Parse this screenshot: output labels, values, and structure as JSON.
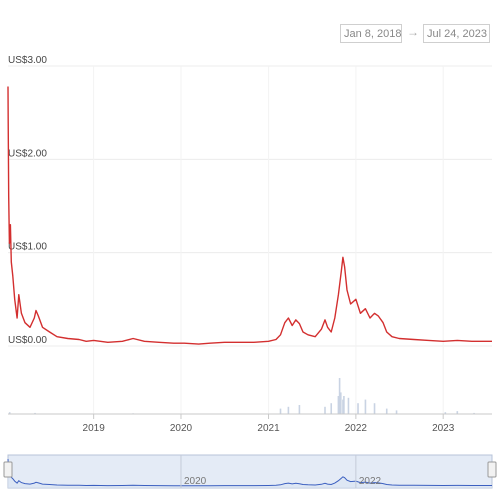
{
  "date_range": {
    "from": "Jan 8, 2018",
    "separator": "→",
    "to": "Jul 24, 2023"
  },
  "chart_data": {
    "type": "line",
    "title": "",
    "xlabel": "",
    "ylabel": "",
    "y_ticks": [
      {
        "value": 0,
        "label": "US$0.00"
      },
      {
        "value": 1,
        "label": "US$1.00"
      },
      {
        "value": 2,
        "label": "US$2.00"
      },
      {
        "value": 3,
        "label": "US$3.00"
      }
    ],
    "ylim": [
      0,
      3.0
    ],
    "x_ticks": [
      "2019",
      "2020",
      "2021",
      "2022",
      "2023"
    ],
    "xlim": [
      "2018-01-08",
      "2023-07-24"
    ],
    "grid": true,
    "line_color": "#d32f2f",
    "volume_color": "#c9d3e3",
    "series": [
      {
        "points": [
          [
            "2018-01-08",
            2.78
          ],
          [
            "2018-01-09",
            2.4
          ],
          [
            "2018-01-11",
            1.6
          ],
          [
            "2018-01-14",
            1.1
          ],
          [
            "2018-01-18",
            1.3
          ],
          [
            "2018-01-22",
            0.9
          ],
          [
            "2018-01-28",
            0.75
          ],
          [
            "2018-02-05",
            0.5
          ],
          [
            "2018-02-15",
            0.3
          ],
          [
            "2018-02-22",
            0.55
          ],
          [
            "2018-03-05",
            0.35
          ],
          [
            "2018-03-20",
            0.25
          ],
          [
            "2018-04-10",
            0.2
          ],
          [
            "2018-04-28",
            0.3
          ],
          [
            "2018-05-05",
            0.38
          ],
          [
            "2018-05-15",
            0.32
          ],
          [
            "2018-06-01",
            0.2
          ],
          [
            "2018-07-01",
            0.15
          ],
          [
            "2018-08-01",
            0.1
          ],
          [
            "2018-09-15",
            0.08
          ],
          [
            "2018-11-01",
            0.07
          ],
          [
            "2018-12-01",
            0.05
          ],
          [
            "2019-01-01",
            0.06
          ],
          [
            "2019-03-01",
            0.04
          ],
          [
            "2019-05-01",
            0.05
          ],
          [
            "2019-06-15",
            0.08
          ],
          [
            "2019-08-01",
            0.05
          ],
          [
            "2019-10-01",
            0.04
          ],
          [
            "2019-12-01",
            0.03
          ],
          [
            "2020-01-15",
            0.03
          ],
          [
            "2020-03-15",
            0.02
          ],
          [
            "2020-05-01",
            0.03
          ],
          [
            "2020-07-01",
            0.04
          ],
          [
            "2020-09-01",
            0.04
          ],
          [
            "2020-11-01",
            0.04
          ],
          [
            "2021-01-01",
            0.05
          ],
          [
            "2021-02-01",
            0.07
          ],
          [
            "2021-02-20",
            0.12
          ],
          [
            "2021-03-10",
            0.25
          ],
          [
            "2021-03-25",
            0.3
          ],
          [
            "2021-04-10",
            0.22
          ],
          [
            "2021-04-25",
            0.28
          ],
          [
            "2021-05-10",
            0.24
          ],
          [
            "2021-05-25",
            0.15
          ],
          [
            "2021-06-15",
            0.12
          ],
          [
            "2021-07-15",
            0.1
          ],
          [
            "2021-08-10",
            0.18
          ],
          [
            "2021-08-25",
            0.28
          ],
          [
            "2021-09-05",
            0.2
          ],
          [
            "2021-09-20",
            0.15
          ],
          [
            "2021-10-05",
            0.3
          ],
          [
            "2021-10-20",
            0.55
          ],
          [
            "2021-11-01",
            0.8
          ],
          [
            "2021-11-08",
            0.95
          ],
          [
            "2021-11-15",
            0.85
          ],
          [
            "2021-11-25",
            0.6
          ],
          [
            "2021-12-10",
            0.45
          ],
          [
            "2022-01-01",
            0.5
          ],
          [
            "2022-01-20",
            0.35
          ],
          [
            "2022-02-10",
            0.4
          ],
          [
            "2022-03-01",
            0.3
          ],
          [
            "2022-03-20",
            0.35
          ],
          [
            "2022-04-05",
            0.32
          ],
          [
            "2022-04-25",
            0.25
          ],
          [
            "2022-05-10",
            0.15
          ],
          [
            "2022-06-01",
            0.1
          ],
          [
            "2022-07-01",
            0.08
          ],
          [
            "2022-09-01",
            0.07
          ],
          [
            "2022-11-01",
            0.06
          ],
          [
            "2023-01-01",
            0.05
          ],
          [
            "2023-03-01",
            0.06
          ],
          [
            "2023-05-01",
            0.05
          ],
          [
            "2023-07-24",
            0.05
          ]
        ]
      }
    ],
    "volume": [
      [
        "2018-01-15",
        0.05
      ],
      [
        "2018-05-01",
        0.03
      ],
      [
        "2019-06-15",
        0.02
      ],
      [
        "2021-02-20",
        0.15
      ],
      [
        "2021-03-25",
        0.2
      ],
      [
        "2021-05-10",
        0.25
      ],
      [
        "2021-08-25",
        0.2
      ],
      [
        "2021-09-20",
        0.3
      ],
      [
        "2021-10-20",
        0.5
      ],
      [
        "2021-10-25",
        1.0
      ],
      [
        "2021-10-30",
        0.6
      ],
      [
        "2021-11-08",
        0.4
      ],
      [
        "2021-11-12",
        0.5
      ],
      [
        "2021-12-01",
        0.45
      ],
      [
        "2022-01-10",
        0.3
      ],
      [
        "2022-02-10",
        0.4
      ],
      [
        "2022-03-20",
        0.3
      ],
      [
        "2022-05-10",
        0.15
      ],
      [
        "2022-06-20",
        0.1
      ],
      [
        "2023-01-10",
        0.05
      ],
      [
        "2023-03-01",
        0.08
      ],
      [
        "2023-05-10",
        0.03
      ]
    ],
    "navigator": {
      "labels": [
        "2020",
        "2022"
      ],
      "line_color": "#3b5fc0",
      "fill_color": "#dbe4f3"
    }
  }
}
